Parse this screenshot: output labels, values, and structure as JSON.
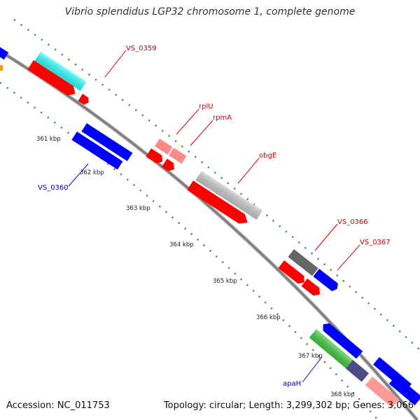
{
  "title": "Vibrio splendidus LGP32 chromosome 1, complete genome",
  "footer": {
    "accession": "Accession: NC_011753",
    "summary": "Topology: circular; Length: 3,299,302 bp; Genes: 3,066"
  },
  "colors": {
    "backbone": "#7f7f7f",
    "tick": "#2e8b2e",
    "callout_red": "#cc0000",
    "callout_blue": "#0000cc",
    "forward_gene": "#ff0000",
    "reverse_gene": "#0000ff",
    "rRNA_pink": "#ff8a8a",
    "cyan": "#33ffff",
    "gray_light": "#cccccc",
    "gray_dark": "#666666",
    "green": "#44cc44",
    "slate": "#4b4b88"
  },
  "kbp_labels": [
    "361 kbp",
    "362 kbp",
    "363 kbp",
    "364 kbp",
    "365 kbp",
    "366 kbp",
    "367 kbp",
    "368 kbp"
  ],
  "callouts": {
    "vs0359": "VS_0359",
    "rplU": "rplU",
    "rpmA": "rpmA",
    "obgE": "obgE",
    "vs0366": "VS_0366",
    "vs0367": "VS_0367",
    "vs0360": "VS_0360",
    "apaH": "apaH"
  }
}
